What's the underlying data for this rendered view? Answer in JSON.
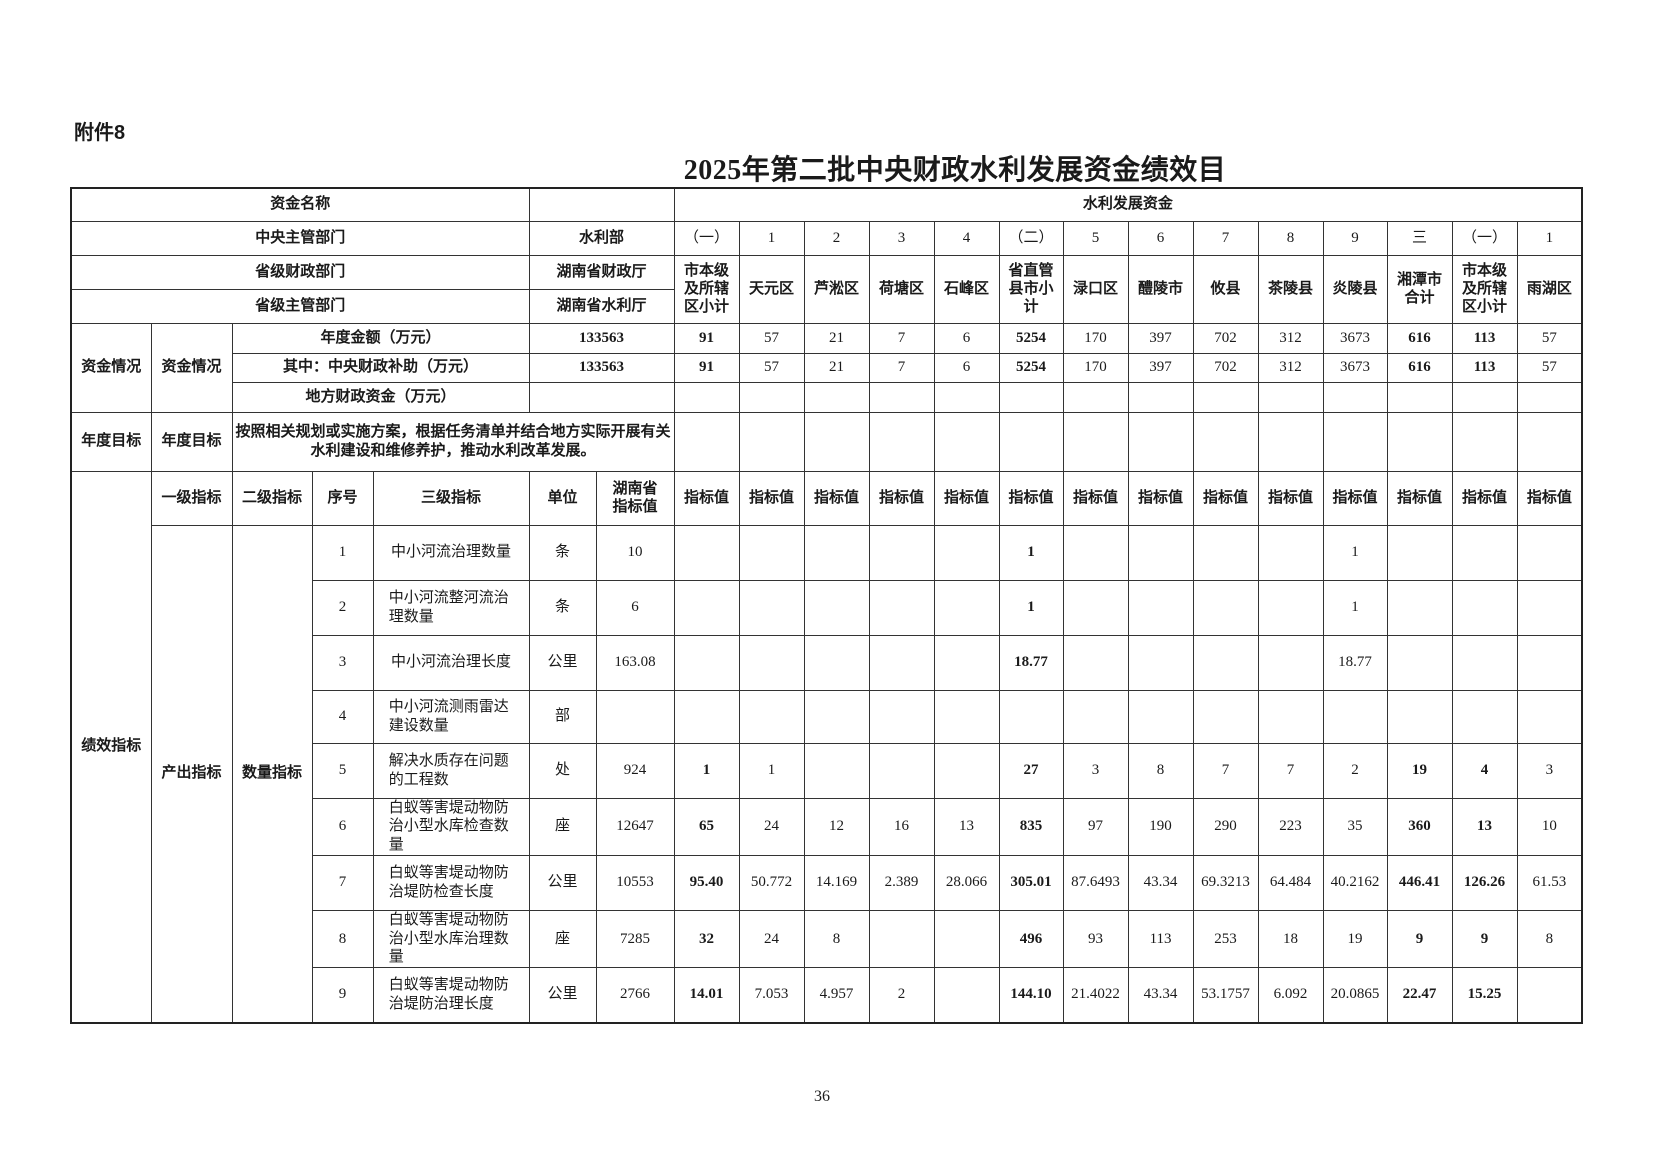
{
  "header": {
    "attachment": "附件8",
    "title": "2025年第二批中央财政水利发展资金绩效目",
    "page_number": "36"
  },
  "table": {
    "fund_name_label": "资金名称",
    "fund_name_value": "",
    "program": "水利发展资金",
    "central_dept_label": "中央主管部门",
    "central_dept_value": "水利部",
    "prov_finance_label": "省级财政部门",
    "prov_finance_value": "湖南省财政厅",
    "prov_water_label": "省级主管部门",
    "prov_water_value": "湖南省水利厅",
    "columns": [
      {
        "no": "（一）",
        "name": "市本级及所辖区小计",
        "bold": true
      },
      {
        "no": "1",
        "name": "天元区"
      },
      {
        "no": "2",
        "name": "芦淞区"
      },
      {
        "no": "3",
        "name": "荷塘区"
      },
      {
        "no": "4",
        "name": "石峰区"
      },
      {
        "no": "（二）",
        "name": "省直管县市小计",
        "bold": true
      },
      {
        "no": "5",
        "name": "渌口区"
      },
      {
        "no": "6",
        "name": "醴陵市"
      },
      {
        "no": "7",
        "name": "攸县"
      },
      {
        "no": "8",
        "name": "茶陵县"
      },
      {
        "no": "9",
        "name": "炎陵县"
      },
      {
        "no": "三",
        "name": "湘潭市合计",
        "bold": true
      },
      {
        "no": "（一）",
        "name": "市本级及所辖区小计",
        "bold": true
      },
      {
        "no": "1",
        "name": "雨湖区"
      }
    ],
    "funding": {
      "group": "资金情况",
      "sub": "资金情况",
      "rows": [
        {
          "label": "年度金额（万元）",
          "total": "133563",
          "values": [
            "91",
            "57",
            "21",
            "7",
            "6",
            "5254",
            "170",
            "397",
            "702",
            "312",
            "3673",
            "616",
            "113",
            "57"
          ]
        },
        {
          "label": "其中：中央财政补助（万元）",
          "total": "133563",
          "values": [
            "91",
            "57",
            "21",
            "7",
            "6",
            "5254",
            "170",
            "397",
            "702",
            "312",
            "3673",
            "616",
            "113",
            "57"
          ]
        },
        {
          "label": "地方财政资金（万元）",
          "total": "",
          "values": [
            "",
            "",
            "",
            "",
            "",
            "",
            "",
            "",
            "",
            "",
            "",
            "",
            "",
            ""
          ]
        }
      ]
    },
    "target": {
      "group": "年度目标",
      "sub": "年度目标",
      "text": "按照相关规划或实施方案，根据任务清单并结合地方实际开展有关水利建设和维修养护，推动水利改革发展。"
    },
    "indicators": {
      "group": "绩效指标",
      "headers": {
        "level1": "一级指标",
        "level2": "二级指标",
        "no": "序号",
        "level3": "三级指标",
        "unit": "单位",
        "province": "湖南省指标值",
        "value": "指标值"
      },
      "level1": "产出指标",
      "level2": "数量指标",
      "rows": [
        {
          "no": "1",
          "name": "中小河流治理数量",
          "unit": "条",
          "province": "10",
          "values": [
            "",
            "",
            "",
            "",
            "",
            "1",
            "",
            "",
            "",
            "",
            "1",
            "",
            "",
            ""
          ]
        },
        {
          "no": "2",
          "name": "中小河流整河流治理数量",
          "unit": "条",
          "province": "6",
          "values": [
            "",
            "",
            "",
            "",
            "",
            "1",
            "",
            "",
            "",
            "",
            "1",
            "",
            "",
            ""
          ]
        },
        {
          "no": "3",
          "name": "中小河流治理长度",
          "unit": "公里",
          "province": "163.08",
          "values": [
            "",
            "",
            "",
            "",
            "",
            "18.77",
            "",
            "",
            "",
            "",
            "18.77",
            "",
            "",
            ""
          ]
        },
        {
          "no": "4",
          "name": "中小河流测雨雷达建设数量",
          "unit": "部",
          "province": "",
          "values": [
            "",
            "",
            "",
            "",
            "",
            "",
            "",
            "",
            "",
            "",
            "",
            "",
            "",
            ""
          ]
        },
        {
          "no": "5",
          "name": "解决水质存在问题的工程数",
          "unit": "处",
          "province": "924",
          "values": [
            "1",
            "1",
            "",
            "",
            "",
            "27",
            "3",
            "8",
            "7",
            "7",
            "2",
            "19",
            "4",
            "3"
          ]
        },
        {
          "no": "6",
          "name": "白蚁等害堤动物防治小型水库检查数量",
          "unit": "座",
          "province": "12647",
          "values": [
            "65",
            "24",
            "12",
            "16",
            "13",
            "835",
            "97",
            "190",
            "290",
            "223",
            "35",
            "360",
            "13",
            "10"
          ]
        },
        {
          "no": "7",
          "name": "白蚁等害堤动物防治堤防检查长度",
          "unit": "公里",
          "province": "10553",
          "values": [
            "95.40",
            "50.772",
            "14.169",
            "2.389",
            "28.066",
            "305.01",
            "87.6493",
            "43.34",
            "69.3213",
            "64.484",
            "40.2162",
            "446.41",
            "126.26",
            "61.53"
          ]
        },
        {
          "no": "8",
          "name": "白蚁等害堤动物防治小型水库治理数量",
          "unit": "座",
          "province": "7285",
          "values": [
            "32",
            "24",
            "8",
            "",
            "",
            "496",
            "93",
            "113",
            "253",
            "18",
            "19",
            "9",
            "9",
            "8"
          ]
        },
        {
          "no": "9",
          "name": "白蚁等害堤动物防治堤防治理长度",
          "unit": "公里",
          "province": "2766",
          "values": [
            "14.01",
            "7.053",
            "4.957",
            "2",
            "",
            "144.10",
            "21.4022",
            "43.34",
            "53.1757",
            "6.092",
            "20.0865",
            "22.47",
            "15.25",
            ""
          ]
        }
      ]
    }
  }
}
